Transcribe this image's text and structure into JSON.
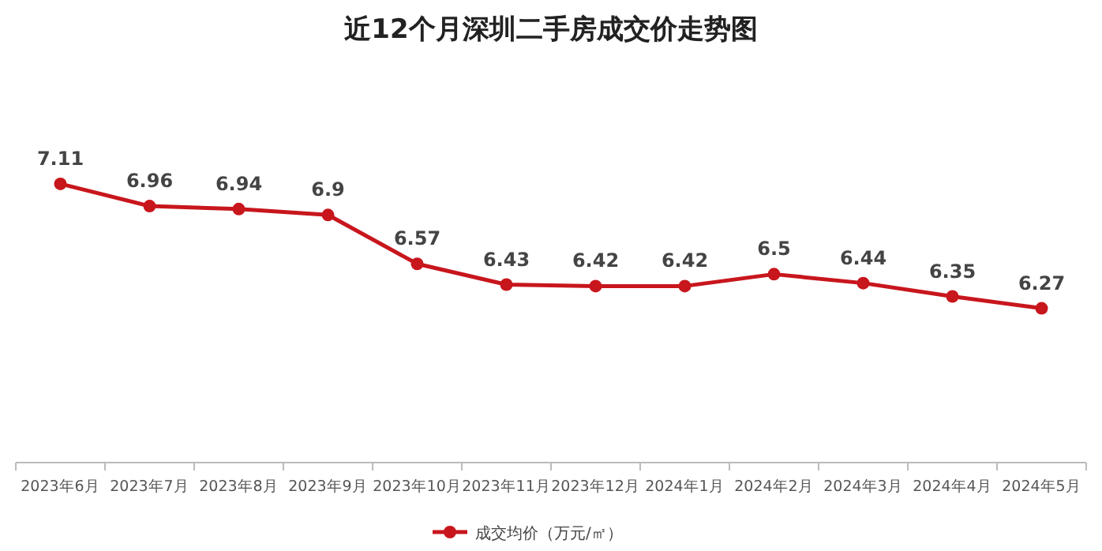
{
  "chart_data": {
    "type": "line",
    "title": "近12个月深圳二手房成交价走势图",
    "categories": [
      "2023年6月",
      "2023年7月",
      "2023年8月",
      "2023年9月",
      "2023年10月",
      "2023年11月",
      "2023年12月",
      "2024年1月",
      "2024年2月",
      "2024年3月",
      "2024年4月",
      "2024年5月"
    ],
    "series": [
      {
        "name": "成交均价（万元/㎡）",
        "color": "#c8161d",
        "values": [
          7.11,
          6.96,
          6.94,
          6.9,
          6.57,
          6.43,
          6.42,
          6.42,
          6.5,
          6.44,
          6.35,
          6.27
        ]
      }
    ],
    "data_labels": true,
    "legend": "bottom",
    "marker": "circle",
    "line_style": "solid",
    "grid": false
  }
}
